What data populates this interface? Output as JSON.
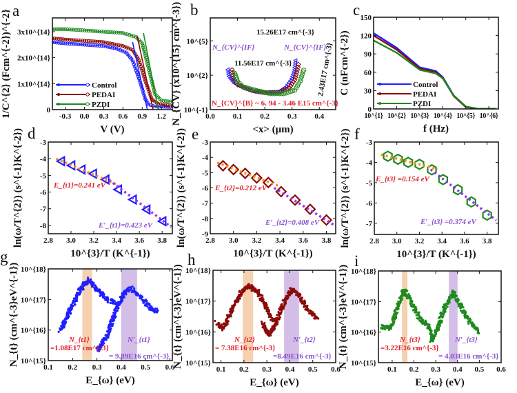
{
  "colors": {
    "control": "#1f1fff",
    "pedai": "#8b0a0a",
    "pzdi": "#1e8a1e",
    "fit_low": "#ff8c1a",
    "fit_high": "#9933ee",
    "label_red": "#e3202c",
    "label_purple": "#8a4fd0",
    "band_orange": "#f3c9a2",
    "band_purple": "#cbb3e3"
  },
  "chart_data": [
    {
      "id": "a",
      "letter": "a",
      "type": "line",
      "xlabel": "V (V)",
      "ylabel": "1/C^{2} (Fcm^{-2})^{-2}",
      "xlim": [
        -0.5,
        1.37
      ],
      "ylim": [
        0,
        353000000000000.0
      ],
      "xticks": [
        -0.3,
        0,
        0.3,
        0.6,
        0.9,
        1.2
      ],
      "xticklabels": [
        "-0.3",
        "0.0",
        "0.3",
        "0.6",
        "0.9",
        "1.2"
      ],
      "yticks": [
        0,
        100000000000000.0,
        200000000000000.0,
        300000000000000.0
      ],
      "yticklabels": [
        "0",
        "1x10^{14}",
        "2x10^{14}",
        "3x10^{14}"
      ],
      "legend": "bottom-left",
      "series": [
        {
          "name": "Control",
          "color": "#1f1fff",
          "marker": "circle-open",
          "x": [
            -0.5,
            -0.3,
            0,
            0.3,
            0.5,
            0.65,
            0.75,
            0.85,
            0.95,
            1.0,
            1.1,
            1.37
          ],
          "y": [
            260000000000000.0,
            255000000000000.0,
            250000000000000.0,
            245000000000000.0,
            235000000000000.0,
            220000000000000.0,
            190000000000000.0,
            120000000000000.0,
            40000000000000.0,
            20000000000000.0,
            12000000000000.0,
            10000000000000.0
          ]
        },
        {
          "name": "PEDAI",
          "color": "#8b0a0a",
          "marker": "circle-open",
          "x": [
            -0.5,
            -0.3,
            0,
            0.3,
            0.6,
            0.75,
            0.85,
            0.95,
            1.05,
            1.15,
            1.37
          ],
          "y": [
            275000000000000.0,
            270000000000000.0,
            265000000000000.0,
            260000000000000.0,
            245000000000000.0,
            230000000000000.0,
            190000000000000.0,
            110000000000000.0,
            40000000000000.0,
            22000000000000.0,
            15000000000000.0
          ]
        },
        {
          "name": "PZDI",
          "color": "#1e8a1e",
          "marker": "circle-open",
          "x": [
            -0.5,
            -0.3,
            0,
            0.3,
            0.6,
            0.8,
            0.9,
            1.0,
            1.1,
            1.2,
            1.37
          ],
          "y": [
            310000000000000.0,
            310000000000000.0,
            305000000000000.0,
            300000000000000.0,
            295000000000000.0,
            280000000000000.0,
            255000000000000.0,
            160000000000000.0,
            60000000000000.0,
            35000000000000.0,
            30000000000000.0
          ]
        }
      ],
      "fits": [
        {
          "color": "#1f1fff",
          "x": [
            0.75,
            0.98
          ],
          "y": [
            260000000000000.0,
            0
          ]
        },
        {
          "color": "#8b0a0a",
          "x": [
            0.82,
            1.07
          ],
          "y": [
            285000000000000.0,
            0
          ]
        },
        {
          "color": "#1e8a1e",
          "x": [
            0.92,
            1.15
          ],
          "y": [
            295000000000000.0,
            0
          ]
        }
      ],
      "annotations": []
    },
    {
      "id": "b",
      "letter": "b",
      "type": "scatter",
      "xlabel": "<x> (μm)",
      "ylabel": "N_{CV} (x10^{15} cm^{-3})",
      "xlim": [
        0,
        0.46
      ],
      "ylim": [
        0.1,
        10000000.0
      ],
      "ylog": true,
      "xticks": [
        0,
        0.1,
        0.2,
        0.3,
        0.4
      ],
      "xticklabels": [
        "0.0",
        "0.1",
        "0.2",
        "0.3",
        "0.4"
      ],
      "yticks": [
        0.1,
        100,
        100000
      ],
      "yticklabels": [
        "10^{-1}",
        "10^{2}",
        "10^{5}"
      ],
      "series": [
        {
          "name": "Control",
          "color": "#1f1fff",
          "marker": "triangle-open",
          "x": [
            0.065,
            0.07,
            0.09,
            0.12,
            0.16,
            0.2,
            0.25,
            0.28,
            0.3,
            0.31,
            0.315
          ],
          "y": [
            300,
            80,
            20,
            8,
            4,
            3,
            3.5,
            10,
            50,
            300,
            3000
          ]
        },
        {
          "name": "PEDAI",
          "color": "#8b0a0a",
          "marker": "diamond-open",
          "x": [
            0.08,
            0.085,
            0.1,
            0.15,
            0.2,
            0.25,
            0.29,
            0.31,
            0.32,
            0.325
          ],
          "y": [
            300,
            60,
            15,
            5,
            3,
            3,
            8,
            40,
            300,
            1500
          ]
        },
        {
          "name": "PZDI",
          "color": "#1e8a1e",
          "marker": "hexagon-open",
          "x": [
            0.09,
            0.1,
            0.12,
            0.18,
            0.22,
            0.27,
            0.31,
            0.33,
            0.34,
            0.345
          ],
          "y": [
            150,
            30,
            10,
            4,
            2.5,
            2.5,
            5,
            30,
            200,
            400
          ]
        }
      ],
      "annotations": [
        "15.26E17 cm^{-3}",
        "11.56E17 cm^{-3}",
        "2.43E17 cm^{-3}",
        "N_{CV}^{IF}",
        "N_{CV}^{IF}",
        "N_{CV}^{B} ~ 6. 94 - 3.46 E15 cm^{-3}"
      ]
    },
    {
      "id": "c",
      "letter": "c",
      "type": "line",
      "xlabel": "f (Hz)",
      "ylabel": "C (nFcm^{-2})",
      "xlim": [
        10,
        2600000.0
      ],
      "xlog": true,
      "ylim": [
        0,
        150
      ],
      "xticks": [
        10,
        100,
        1000,
        10000,
        100000,
        1000000
      ],
      "xticklabels": [
        "10^{1}",
        "10^{2}",
        "10^{3}",
        "10^{4}",
        "10^{5}",
        "10^{6}"
      ],
      "yticks": [
        0,
        30,
        60,
        90,
        120,
        150
      ],
      "yticklabels": [
        "0",
        "30",
        "60",
        "90",
        "120",
        "150"
      ],
      "legend": "bottom-left",
      "series": [
        {
          "name": "Control",
          "color": "#1f1fff",
          "x": [
            10,
            100,
            1000,
            5000,
            10000,
            30000,
            100000,
            300000,
            2000000
          ],
          "y": [
            124,
            100,
            68,
            62,
            52,
            22,
            4,
            0.5,
            0
          ]
        },
        {
          "name": "PEDAI",
          "color": "#8b0a0a",
          "x": [
            10,
            100,
            1000,
            5000,
            10000,
            30000,
            100000,
            300000,
            2000000
          ],
          "y": [
            120,
            97,
            66,
            60,
            51,
            21,
            3,
            0.3,
            0
          ]
        },
        {
          "name": "PZDI",
          "color": "#1e8a1e",
          "x": [
            10,
            100,
            1000,
            5000,
            10000,
            30000,
            100000,
            300000,
            2000000
          ],
          "y": [
            112,
            92,
            64,
            58,
            50,
            22,
            4,
            0.5,
            0
          ]
        }
      ],
      "annotations": []
    },
    {
      "id": "d",
      "letter": "d",
      "type": "scatter",
      "xlabel": "10^{3}/T (K^{-1})",
      "ylabel": "ln(ω/T^{2}) (s^{-1}K^{-2})",
      "xlim": [
        2.8,
        3.89
      ],
      "ylim": [
        -8.5,
        -3
      ],
      "xticks": [
        2.8,
        3.0,
        3.2,
        3.4,
        3.6,
        3.8
      ],
      "xticklabels": [
        "2.8",
        "3.0",
        "3.2",
        "3.4",
        "3.6",
        "3.8"
      ],
      "yticks": [
        -8,
        -7,
        -6,
        -5,
        -4,
        -3
      ],
      "yticklabels": [
        "-8",
        "-7",
        "-6",
        "-5",
        "-4",
        "-3"
      ],
      "series": [
        {
          "color": "#1f1fff",
          "marker": "triangle-open",
          "x": [
            2.92,
            3.01,
            3.1,
            3.2,
            3.31,
            3.42,
            3.55,
            3.67,
            3.81
          ],
          "y": [
            -4.15,
            -4.4,
            -4.65,
            -4.9,
            -5.25,
            -5.85,
            -6.45,
            -7.05,
            -7.75
          ]
        }
      ],
      "fits": [
        {
          "color": "#ff8c1a",
          "x": [
            2.87,
            3.42
          ],
          "y": [
            -4.0,
            -5.6
          ]
        },
        {
          "color": "#9933ee",
          "x": [
            3.3,
            3.88
          ],
          "y": [
            -5.1,
            -8.1
          ]
        }
      ],
      "annotations": [
        "E_{t1}=0.241 eV",
        "E′_{t1}=0.423 eV"
      ]
    },
    {
      "id": "e",
      "letter": "e",
      "type": "scatter",
      "xlabel": "10^{3}/T (K^{-1})",
      "ylabel": "ln(ω/T^{2}) (s^{-1}K^{-2})",
      "xlim": [
        2.8,
        3.88
      ],
      "ylim": [
        -9,
        -3
      ],
      "xticks": [
        2.8,
        3.0,
        3.2,
        3.4,
        3.6,
        3.8
      ],
      "xticklabels": [
        "2.8",
        "3.0",
        "3.2",
        "3.4",
        "3.6",
        "3.8"
      ],
      "yticks": [
        -9,
        -8,
        -7,
        -6,
        -5,
        -4,
        -3
      ],
      "yticklabels": [
        "-9",
        "-8",
        "-7",
        "-6",
        "-5",
        "-4",
        "-3"
      ],
      "series": [
        {
          "color": "#8b0a0a",
          "marker": "diamond-open",
          "x": [
            2.91,
            3.0,
            3.1,
            3.2,
            3.3,
            3.41,
            3.53,
            3.66,
            3.8
          ],
          "y": [
            -4.55,
            -4.8,
            -5.05,
            -5.35,
            -5.65,
            -6.25,
            -6.8,
            -7.4,
            -8.1
          ]
        }
      ],
      "fits": [
        {
          "color": "#ff8c1a",
          "x": [
            2.86,
            3.4
          ],
          "y": [
            -4.35,
            -5.9
          ]
        },
        {
          "color": "#9933ee",
          "x": [
            3.35,
            3.86
          ],
          "y": [
            -6.0,
            -8.4
          ]
        }
      ],
      "annotations": [
        "E_{t2}=0.212 eV",
        "E′_{t2}=0.408 eV"
      ]
    },
    {
      "id": "f",
      "letter": "f",
      "type": "scatter",
      "xlabel": "10^{3}/T (K^{-1})",
      "ylabel": "ln(ω/T^{2}) (s^{-1}K^{-2})",
      "xlim": [
        2.8,
        3.9
      ],
      "ylim": [
        -7.55,
        -3
      ],
      "xticks": [
        2.8,
        3.0,
        3.2,
        3.4,
        3.6,
        3.8
      ],
      "xticklabels": [
        "2.8",
        "3.0",
        "3.2",
        "3.4",
        "3.6",
        "3.8"
      ],
      "yticks": [
        -7,
        -6,
        -5,
        -4,
        -3
      ],
      "yticklabels": [
        "-7",
        "-6",
        "-5",
        "-4",
        "-3"
      ],
      "series": [
        {
          "color": "#1e8a1e",
          "marker": "hexagon-open",
          "x": [
            2.92,
            3.01,
            3.1,
            3.2,
            3.31,
            3.41,
            3.54,
            3.66,
            3.8
          ],
          "y": [
            -3.7,
            -3.85,
            -4.0,
            -4.1,
            -4.37,
            -4.85,
            -5.35,
            -5.95,
            -6.6
          ]
        }
      ],
      "fits": [
        {
          "color": "#ff8c1a",
          "x": [
            2.86,
            3.36
          ],
          "y": [
            -3.62,
            -4.33
          ]
        },
        {
          "color": "#9933ee",
          "x": [
            3.3,
            3.88
          ],
          "y": [
            -4.35,
            -6.85
          ]
        }
      ],
      "annotations": [
        "E_{t3} =0.154 eV",
        "E′_{t3} =0.374 eV"
      ]
    },
    {
      "id": "g",
      "letter": "g",
      "type": "scatter",
      "xlabel": "E_{ω} (eV)",
      "ylabel": "N_{t} (cm^{-3}eV^{-1})",
      "xlim": [
        0.1,
        0.61
      ],
      "ylim": [
        1000000000000000.0,
        1e+18
      ],
      "ylog": true,
      "xticks": [
        0.1,
        0.2,
        0.3,
        0.4,
        0.5,
        0.6
      ],
      "xticklabels": [
        "0.1",
        "0.2",
        "0.3",
        "0.4",
        "0.5",
        "0.6"
      ],
      "yticks": [
        1000000000000000.0,
        1e+16,
        1e+17,
        1e+18
      ],
      "yticklabels": [
        "10^{15}",
        "10^{16}",
        "10^{17}",
        "10^{18}"
      ],
      "bands": [
        {
          "color": "#f3c9a2",
          "x": [
            0.24,
            0.28
          ]
        },
        {
          "color": "#cbb3e3",
          "x": [
            0.4,
            0.465
          ]
        }
      ],
      "series": [
        {
          "color": "#1f1fff",
          "marker": "dot",
          "x": [
            0.15,
            0.18,
            0.22,
            0.265,
            0.3,
            0.35,
            0.38
          ],
          "y": [
            1e+16,
            3e+16,
            1.5e+17,
            4.5e+17,
            2e+17,
            9e+16,
            8e+16
          ]
        },
        {
          "color": "#1f1fff",
          "marker": "dot",
          "x": [
            0.3,
            0.34,
            0.38,
            0.41,
            0.44,
            0.48,
            0.52,
            0.55
          ],
          "y": [
            2000000000000000.0,
            6000000000000000.0,
            5e+16,
            1.5e+17,
            2.3e+17,
            1.2e+17,
            5e+16,
            4e+16
          ]
        }
      ],
      "annotations": [
        "N_{t1}",
        "=1.08E17 cm^{-3}",
        "N′_{t1}",
        "= 9.89E16 cm^{-3}"
      ]
    },
    {
      "id": "h",
      "letter": "h",
      "type": "scatter",
      "xlabel": "E_{ω} (eV)",
      "ylabel": "N_{t} (cm^{-3}eV^{-1})",
      "xlim": [
        0.065,
        0.6
      ],
      "ylim": [
        1000000000000000.0,
        1e+18
      ],
      "ylog": true,
      "xticks": [
        0.1,
        0.2,
        0.3,
        0.4,
        0.5,
        0.6
      ],
      "xticklabels": [
        "0.1",
        "0.2",
        "0.3",
        "0.4",
        "0.5",
        "0.6"
      ],
      "yticks": [
        1000000000000000.0,
        1e+16,
        1e+17,
        1e+18
      ],
      "yticklabels": [
        "10^{15}",
        "10^{16}",
        "10^{17}",
        "10^{18}"
      ],
      "bands": [
        {
          "color": "#f3c9a2",
          "x": [
            0.195,
            0.24
          ]
        },
        {
          "color": "#cbb3e3",
          "x": [
            0.375,
            0.44
          ]
        }
      ],
      "series": [
        {
          "color": "#8b0a0a",
          "marker": "dot",
          "x": [
            0.08,
            0.11,
            0.15,
            0.19,
            0.22,
            0.26,
            0.3,
            0.33
          ],
          "y": [
            2e+16,
            1.3e+16,
            6e+16,
            2e+17,
            3.3e+17,
            2e+17,
            6e+16,
            2e+16
          ]
        },
        {
          "color": "#8b0a0a",
          "marker": "dot",
          "x": [
            0.28,
            0.31,
            0.34,
            0.37,
            0.41,
            0.44,
            0.48,
            0.52
          ],
          "y": [
            2e+16,
            8000000000000000.0,
            2e+16,
            8e+16,
            2.5e+17,
            1.5e+17,
            5e+16,
            2.5e+16
          ]
        }
      ],
      "annotations": [
        "N_{t2}",
        "= 7.38E16 cm^{-3}",
        "N′_{t2}",
        "=8.49E16 cm^{-3}"
      ]
    },
    {
      "id": "i",
      "letter": "i",
      "type": "scatter",
      "xlabel": "E_{ω} (eV)",
      "ylabel": "N_{t} (cm^{-3}eV^{-1})",
      "xlim": [
        0.037,
        0.6
      ],
      "ylim": [
        1000000000000000.0,
        1e+18
      ],
      "ylog": true,
      "xticks": [
        0.1,
        0.2,
        0.3,
        0.4,
        0.5,
        0.6
      ],
      "xticklabels": [
        "0.1",
        "0.2",
        "0.3",
        "0.4",
        "0.5",
        "0.6"
      ],
      "yticks": [
        1000000000000000.0,
        1e+16,
        1e+17,
        1e+18
      ],
      "yticklabels": [
        "10^{15}",
        "10^{16}",
        "10^{17}",
        "10^{18}"
      ],
      "bands": [
        {
          "color": "#f3c9a2",
          "x": [
            0.145,
            0.17
          ]
        },
        {
          "color": "#cbb3e3",
          "x": [
            0.36,
            0.4
          ]
        }
      ],
      "series": [
        {
          "color": "#1e8a1e",
          "marker": "dot",
          "x": [
            0.05,
            0.09,
            0.12,
            0.155,
            0.19,
            0.23,
            0.27,
            0.29
          ],
          "y": [
            1.5e+16,
            1.3e+16,
            5e+16,
            2.4e+17,
            9e+16,
            2.5e+16,
            1.5e+16,
            5000000000000000.0
          ]
        },
        {
          "color": "#1e8a1e",
          "marker": "dot",
          "x": [
            0.28,
            0.31,
            0.34,
            0.38,
            0.42,
            0.46,
            0.5
          ],
          "y": [
            5000000000000000.0,
            1.5e+16,
            6e+16,
            2e+17,
            6e+16,
            2e+16,
            1e+16
          ]
        }
      ],
      "annotations": [
        "N_{t3}",
        "=3.22E16 cm^{-3}",
        "N′_{t3}",
        "= 4.03E16 cm^{-3}"
      ]
    }
  ]
}
